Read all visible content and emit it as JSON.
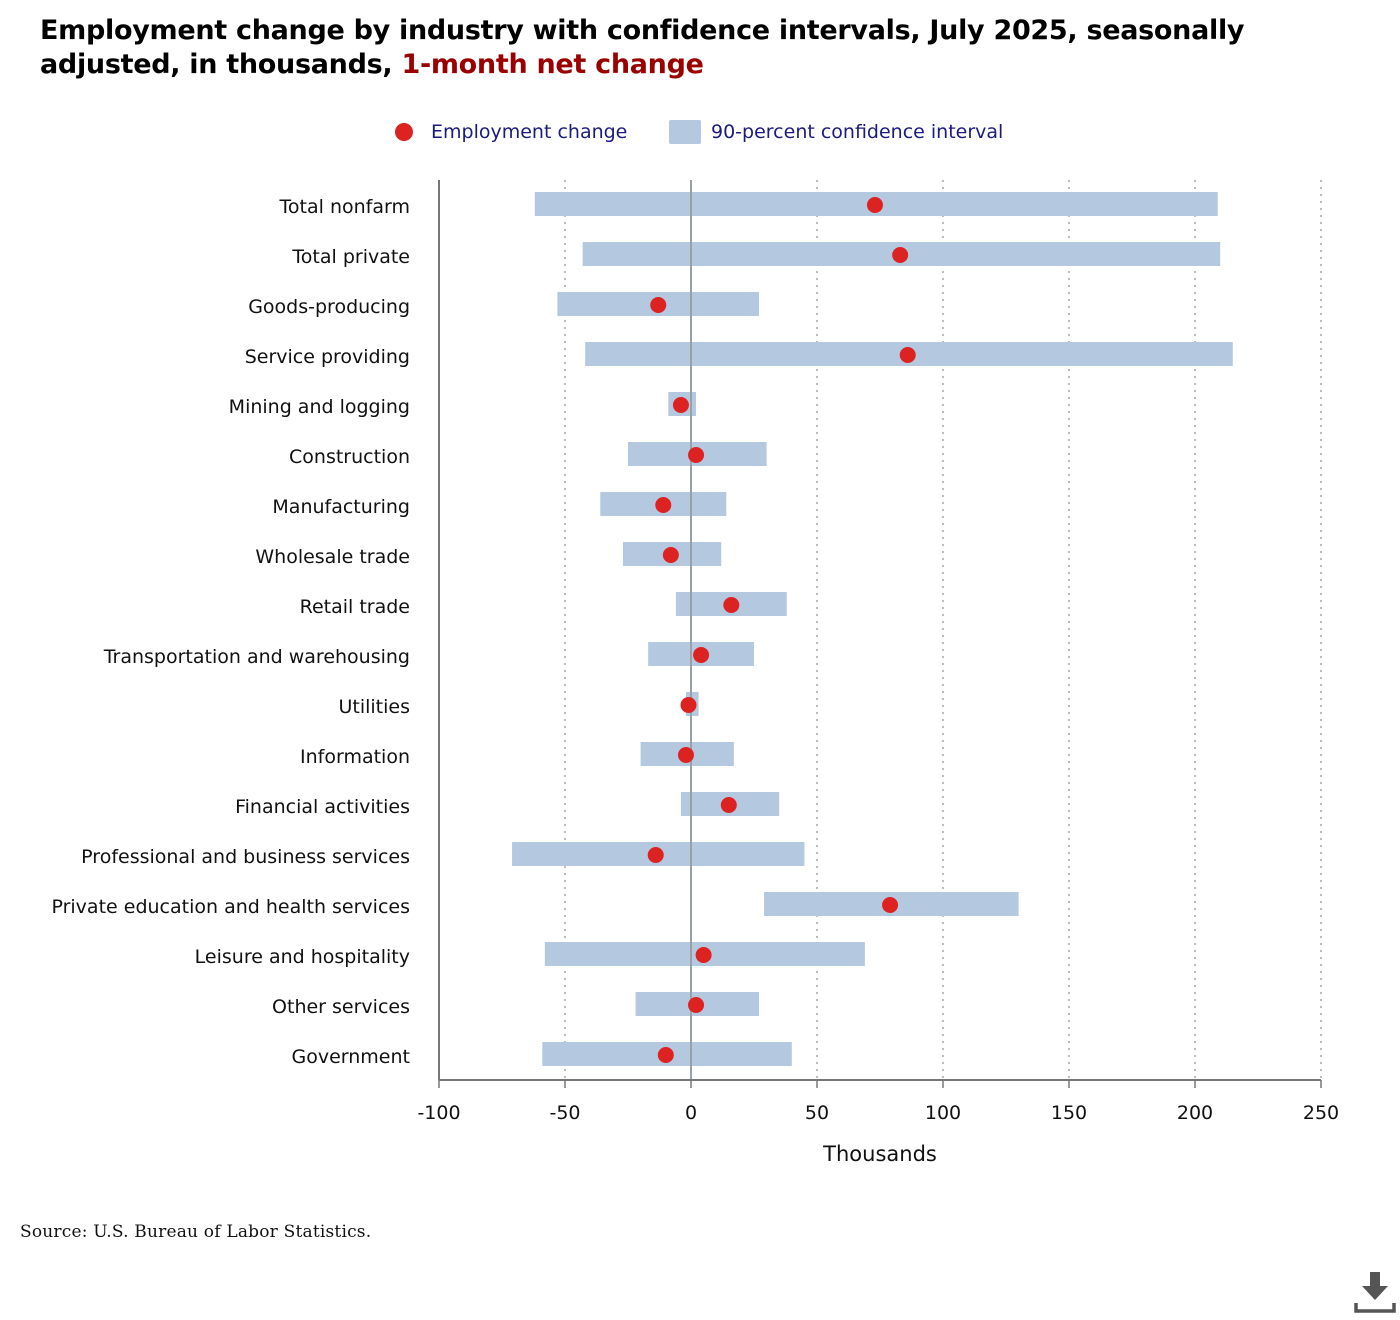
{
  "title": {
    "main": "Employment change by industry with confidence intervals, July 2025, seasonally adjusted, in thousands, ",
    "highlight": "1-month net change"
  },
  "legend": {
    "point_label": "Employment change",
    "interval_label": "90-percent confidence interval"
  },
  "source": "Source: U.S. Bureau of Labor Statistics.",
  "colors": {
    "point": "#dd2222",
    "interval": "#b4c8e0",
    "title_highlight": "#9b0000",
    "legend_text": "#1a1a80"
  },
  "icons": {
    "download": "download-icon"
  },
  "chart_data": {
    "type": "dot-interval",
    "xlabel": "Thousands",
    "xlim": [
      -100,
      250
    ],
    "xticks": [
      -100,
      -50,
      0,
      50,
      100,
      150,
      200,
      250
    ],
    "xtick_labels": [
      "-100",
      "-50",
      "0",
      "50",
      "100",
      "150",
      "200",
      "250"
    ],
    "grid": "vertical dotted",
    "legend_position": "top-center",
    "categories": [
      "Total nonfarm",
      "Total private",
      "Goods-producing",
      "Service providing",
      "Mining and logging",
      "Construction",
      "Manufacturing",
      "Wholesale trade",
      "Retail trade",
      "Transportation and warehousing",
      "Utilities",
      "Information",
      "Financial activities",
      "Professional and business services",
      "Private education and health services",
      "Leisure and hospitality",
      "Other services",
      "Government"
    ],
    "series": [
      {
        "name": "Employment change",
        "values": [
          73,
          83,
          -13,
          86,
          -4,
          2,
          -11,
          -8,
          16,
          4,
          -1,
          -2,
          15,
          -14,
          79,
          5,
          2,
          -10
        ]
      },
      {
        "name": "90-percent confidence interval",
        "lower": [
          -62,
          -43,
          -53,
          -42,
          -9,
          -25,
          -36,
          -27,
          -6,
          -17,
          -2,
          -20,
          -4,
          -71,
          29,
          -58,
          -22,
          -59
        ],
        "upper": [
          209,
          210,
          27,
          215,
          2,
          30,
          14,
          12,
          38,
          25,
          3,
          17,
          35,
          45,
          130,
          69,
          27,
          40
        ]
      }
    ]
  }
}
